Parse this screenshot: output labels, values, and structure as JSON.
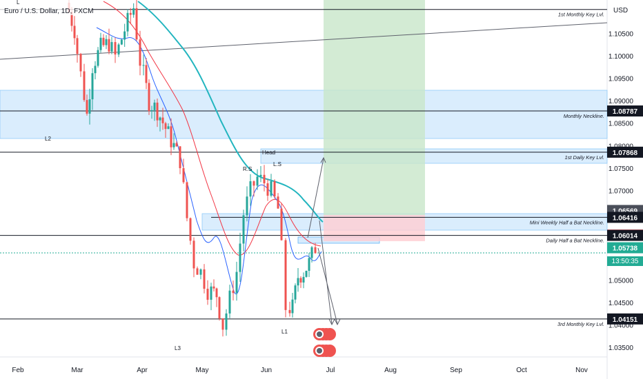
{
  "header": {
    "title": "Euro / U.S. Dollar, 1D, FXCM",
    "top_label": "L"
  },
  "axis": {
    "currency": "USD"
  },
  "chart_data": {
    "type": "candlestick",
    "title": "Euro / U.S. Dollar, 1D, FXCM",
    "x_ticks": [
      "Feb",
      "Mar",
      "Apr",
      "May",
      "Jun",
      "Jul",
      "Aug",
      "Sep",
      "Oct",
      "Nov"
    ],
    "y_ticks": [
      "1.10500",
      "1.10000",
      "1.09500",
      "1.09000",
      "1.08500",
      "1.08000",
      "1.07500",
      "1.07000",
      "1.05000",
      "1.04500",
      "1.04000",
      "1.03500"
    ],
    "ylim": [
      1.0335,
      1.1123
    ],
    "price_badges": [
      {
        "value": "1.08787",
        "bg": "#131722",
        "fg": "#ffffff"
      },
      {
        "value": "1.07868",
        "bg": "#131722",
        "fg": "#ffffff"
      },
      {
        "value": "1.06569",
        "bg": "#4a4e59",
        "fg": "#ffffff"
      },
      {
        "value": "1.06416",
        "bg": "#131722",
        "fg": "#ffffff"
      },
      {
        "value": "1.06020",
        "bg": "#f23645",
        "fg": "#ffffff"
      },
      {
        "value": "1.06014",
        "bg": "#131722",
        "fg": "#ffffff"
      },
      {
        "value": "1.05738",
        "bg": "#22ab94",
        "fg": "#ffffff"
      },
      {
        "value": "1.04151",
        "bg": "#131722",
        "fg": "#ffffff"
      }
    ],
    "countdown": "13:50:35",
    "levels": [
      {
        "value": 1.1105,
        "label": "1st Monthly Key Lvl."
      },
      {
        "value": 1.08787,
        "label": "Monthly Neckline."
      },
      {
        "value": 1.07868,
        "label": "1st Daily Key Lvl."
      },
      {
        "value": 1.06416,
        "label": "Mini Weekly Half a Bat Neckline."
      },
      {
        "value": 1.06014,
        "label": "Daily Half a Bat Neckline."
      },
      {
        "value": 1.04151,
        "label": "3rd Monthly Key Lvl."
      }
    ],
    "annotations": [
      "Head",
      "R.S",
      "L.S",
      "L1",
      "L2",
      "L3"
    ],
    "colors": {
      "up": "#26a69a",
      "down": "#ef5350",
      "ema_fast": "#2962ff",
      "ema_mid": "#f23645",
      "ema_slow": "#22b5bf",
      "zone": "#bbdefb",
      "target": "#c8e6c9",
      "stop": "#ffcdd2"
    }
  }
}
